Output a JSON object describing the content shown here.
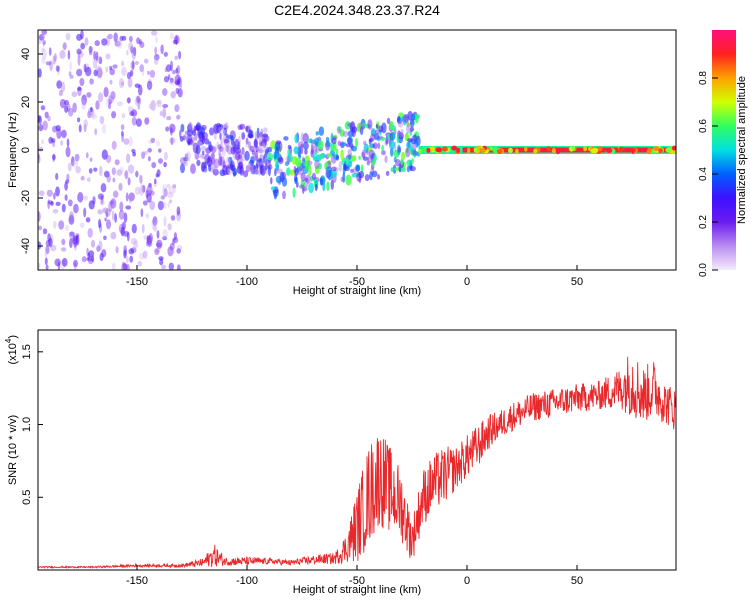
{
  "figure_title": "C2E4.2024.348.23.37.R24",
  "chart_data": [
    {
      "type": "heatmap",
      "title": "C2E4.2024.348.23.37.R24",
      "xlabel": "Height of straight line (km)",
      "ylabel": "Frequency (Hz)",
      "xlim": [
        -195,
        95
      ],
      "ylim": [
        -50,
        50
      ],
      "x_ticks": [
        -150,
        -100,
        -50,
        0,
        50
      ],
      "y_ticks": [
        -40,
        -20,
        0,
        20,
        40
      ],
      "colorbar": {
        "label": "Normalized spectral amplitude",
        "range": [
          0,
          1
        ],
        "ticks": [
          0.0,
          0.2,
          0.4,
          0.6,
          0.8
        ],
        "tick_labels": [
          "0.0",
          "0.2",
          "0.4",
          "0.6",
          "0.8"
        ],
        "colormap": [
          "#f4ecfb",
          "#b98cf0",
          "#6a1cf0",
          "#3d10ff",
          "#0060ff",
          "#00e0e0",
          "#30ff60",
          "#d0ff00",
          "#ffa000",
          "#ff2020",
          "#ff1080"
        ]
      },
      "description_regions": [
        {
          "x_range": [
            -195,
            -130
          ],
          "frequency_band": [
            -50,
            50
          ],
          "amplitude": 0.15
        },
        {
          "x_range": [
            -130,
            -90
          ],
          "frequency_band": [
            -10,
            10
          ],
          "amplitude": 0.2
        },
        {
          "x_range": [
            -90,
            -22
          ],
          "frequency_band": [
            -12,
            12
          ],
          "amplitude": 0.35
        },
        {
          "x_range": [
            -22,
            95
          ],
          "frequency_band": [
            -2,
            2
          ],
          "amplitude": 0.95
        }
      ]
    },
    {
      "type": "line",
      "xlabel": "Height of straight line (km)",
      "ylabel": "SNR (10 * v/v)",
      "y_scale_label": "(x10",
      "y_scale_exponent": "4",
      "xlim": [
        -195,
        95
      ],
      "ylim": [
        0,
        1.65
      ],
      "x_ticks": [
        -150,
        -100,
        -50,
        0,
        50
      ],
      "y_ticks": [
        0.5,
        1.0,
        1.5
      ],
      "y_tick_labels": [
        "0.5",
        "1.0",
        "1.5"
      ],
      "series": [
        {
          "name": "SNR",
          "color": "#e8282b",
          "x": [
            -195,
            -170,
            -150,
            -130,
            -120,
            -115,
            -110,
            -100,
            -90,
            -80,
            -70,
            -60,
            -55,
            -50,
            -45,
            -40,
            -35,
            -30,
            -25,
            -20,
            -15,
            -10,
            -5,
            0,
            5,
            10,
            15,
            20,
            30,
            40,
            50,
            60,
            70,
            75,
            80,
            85,
            90,
            95
          ],
          "y": [
            0.02,
            0.02,
            0.03,
            0.03,
            0.05,
            0.1,
            0.06,
            0.06,
            0.06,
            0.05,
            0.07,
            0.08,
            0.15,
            0.3,
            0.5,
            0.65,
            0.55,
            0.45,
            0.2,
            0.5,
            0.6,
            0.65,
            0.7,
            0.78,
            0.85,
            0.95,
            1.0,
            1.05,
            1.12,
            1.15,
            1.18,
            1.2,
            1.25,
            1.3,
            1.2,
            1.25,
            1.15,
            1.1
          ],
          "amplitude": [
            0.005,
            0.005,
            0.01,
            0.01,
            0.03,
            0.08,
            0.03,
            0.03,
            0.02,
            0.02,
            0.03,
            0.04,
            0.1,
            0.25,
            0.35,
            0.35,
            0.3,
            0.25,
            0.15,
            0.2,
            0.2,
            0.2,
            0.15,
            0.15,
            0.15,
            0.12,
            0.1,
            0.1,
            0.1,
            0.1,
            0.1,
            0.1,
            0.15,
            0.25,
            0.2,
            0.2,
            0.15,
            0.15
          ]
        }
      ]
    }
  ]
}
